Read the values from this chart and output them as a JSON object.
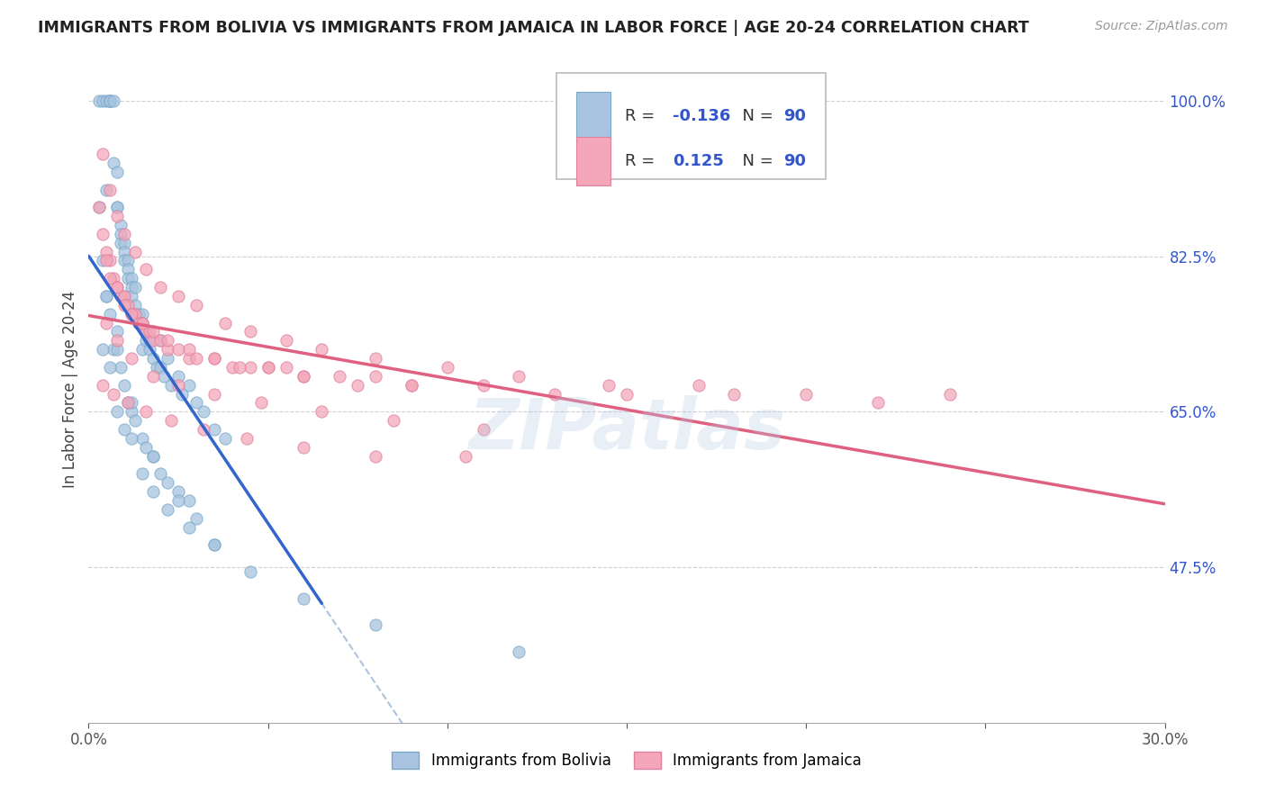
{
  "title": "IMMIGRANTS FROM BOLIVIA VS IMMIGRANTS FROM JAMAICA IN LABOR FORCE | AGE 20-24 CORRELATION CHART",
  "source": "Source: ZipAtlas.com",
  "ylabel": "In Labor Force | Age 20-24",
  "xlim": [
    0.0,
    0.3
  ],
  "ylim": [
    0.3,
    1.05
  ],
  "yticks": [
    0.475,
    0.65,
    0.825,
    1.0
  ],
  "ytick_labels": [
    "47.5%",
    "65.0%",
    "82.5%",
    "100.0%"
  ],
  "xticks": [
    0.0,
    0.05,
    0.1,
    0.15,
    0.2,
    0.25,
    0.3
  ],
  "xtick_labels_show": [
    "0.0%",
    "",
    "",
    "",
    "",
    "",
    "30.0%"
  ],
  "bolivia_color": "#a8c4e0",
  "bolivia_edge": "#7aaac8",
  "jamaica_color": "#f4a7b9",
  "jamaica_edge": "#e080a0",
  "bolivia_R": "-0.136",
  "jamaica_R": "0.125",
  "N": "90",
  "legend_R_color": "#3355cc",
  "title_color": "#222222",
  "watermark": "ZIPatlas",
  "bolivia_trend_color": "#3366cc",
  "jamaica_trend_color": "#e06080",
  "dashed_color": "#88aacc",
  "bolivia_x": [
    0.003,
    0.004,
    0.005,
    0.006,
    0.006,
    0.006,
    0.007,
    0.007,
    0.008,
    0.008,
    0.008,
    0.009,
    0.009,
    0.009,
    0.01,
    0.01,
    0.01,
    0.01,
    0.011,
    0.011,
    0.011,
    0.012,
    0.012,
    0.012,
    0.013,
    0.013,
    0.013,
    0.014,
    0.014,
    0.015,
    0.015,
    0.015,
    0.016,
    0.016,
    0.017,
    0.017,
    0.018,
    0.019,
    0.02,
    0.02,
    0.021,
    0.022,
    0.023,
    0.025,
    0.026,
    0.028,
    0.03,
    0.032,
    0.035,
    0.038,
    0.003,
    0.004,
    0.005,
    0.005,
    0.006,
    0.007,
    0.008,
    0.009,
    0.01,
    0.011,
    0.012,
    0.013,
    0.015,
    0.016,
    0.018,
    0.02,
    0.022,
    0.025,
    0.028,
    0.03,
    0.004,
    0.006,
    0.008,
    0.01,
    0.012,
    0.015,
    0.018,
    0.022,
    0.028,
    0.035,
    0.005,
    0.008,
    0.012,
    0.018,
    0.025,
    0.035,
    0.045,
    0.06,
    0.08,
    0.12
  ],
  "bolivia_y": [
    1.0,
    1.0,
    1.0,
    1.0,
    1.0,
    1.0,
    1.0,
    0.93,
    0.92,
    0.88,
    0.88,
    0.86,
    0.85,
    0.84,
    0.84,
    0.83,
    0.82,
    0.78,
    0.82,
    0.81,
    0.8,
    0.8,
    0.79,
    0.78,
    0.79,
    0.77,
    0.76,
    0.76,
    0.75,
    0.76,
    0.75,
    0.72,
    0.74,
    0.73,
    0.73,
    0.72,
    0.71,
    0.7,
    0.73,
    0.7,
    0.69,
    0.71,
    0.68,
    0.69,
    0.67,
    0.68,
    0.66,
    0.65,
    0.63,
    0.62,
    0.88,
    0.82,
    0.78,
    0.9,
    0.76,
    0.72,
    0.74,
    0.7,
    0.68,
    0.66,
    0.65,
    0.64,
    0.62,
    0.61,
    0.6,
    0.58,
    0.57,
    0.56,
    0.55,
    0.53,
    0.72,
    0.7,
    0.65,
    0.63,
    0.62,
    0.58,
    0.56,
    0.54,
    0.52,
    0.5,
    0.78,
    0.72,
    0.66,
    0.6,
    0.55,
    0.5,
    0.47,
    0.44,
    0.41,
    0.38
  ],
  "jamaica_x": [
    0.003,
    0.004,
    0.005,
    0.006,
    0.007,
    0.008,
    0.009,
    0.01,
    0.011,
    0.012,
    0.013,
    0.014,
    0.015,
    0.016,
    0.017,
    0.018,
    0.02,
    0.022,
    0.025,
    0.028,
    0.03,
    0.035,
    0.04,
    0.045,
    0.05,
    0.055,
    0.06,
    0.07,
    0.08,
    0.09,
    0.005,
    0.006,
    0.008,
    0.01,
    0.012,
    0.015,
    0.018,
    0.022,
    0.028,
    0.035,
    0.042,
    0.05,
    0.06,
    0.075,
    0.09,
    0.11,
    0.13,
    0.15,
    0.18,
    0.22,
    0.004,
    0.006,
    0.008,
    0.01,
    0.013,
    0.016,
    0.02,
    0.025,
    0.03,
    0.038,
    0.045,
    0.055,
    0.065,
    0.08,
    0.1,
    0.12,
    0.145,
    0.17,
    0.2,
    0.24,
    0.005,
    0.008,
    0.012,
    0.018,
    0.025,
    0.035,
    0.048,
    0.065,
    0.085,
    0.11,
    0.004,
    0.007,
    0.011,
    0.016,
    0.023,
    0.032,
    0.044,
    0.06,
    0.08,
    0.105
  ],
  "jamaica_y": [
    0.88,
    0.85,
    0.83,
    0.82,
    0.8,
    0.79,
    0.78,
    0.78,
    0.77,
    0.76,
    0.76,
    0.75,
    0.75,
    0.74,
    0.74,
    0.73,
    0.73,
    0.72,
    0.72,
    0.71,
    0.71,
    0.71,
    0.7,
    0.7,
    0.7,
    0.7,
    0.69,
    0.69,
    0.69,
    0.68,
    0.82,
    0.8,
    0.79,
    0.77,
    0.76,
    0.75,
    0.74,
    0.73,
    0.72,
    0.71,
    0.7,
    0.7,
    0.69,
    0.68,
    0.68,
    0.68,
    0.67,
    0.67,
    0.67,
    0.66,
    0.94,
    0.9,
    0.87,
    0.85,
    0.83,
    0.81,
    0.79,
    0.78,
    0.77,
    0.75,
    0.74,
    0.73,
    0.72,
    0.71,
    0.7,
    0.69,
    0.68,
    0.68,
    0.67,
    0.67,
    0.75,
    0.73,
    0.71,
    0.69,
    0.68,
    0.67,
    0.66,
    0.65,
    0.64,
    0.63,
    0.68,
    0.67,
    0.66,
    0.65,
    0.64,
    0.63,
    0.62,
    0.61,
    0.6,
    0.6
  ]
}
